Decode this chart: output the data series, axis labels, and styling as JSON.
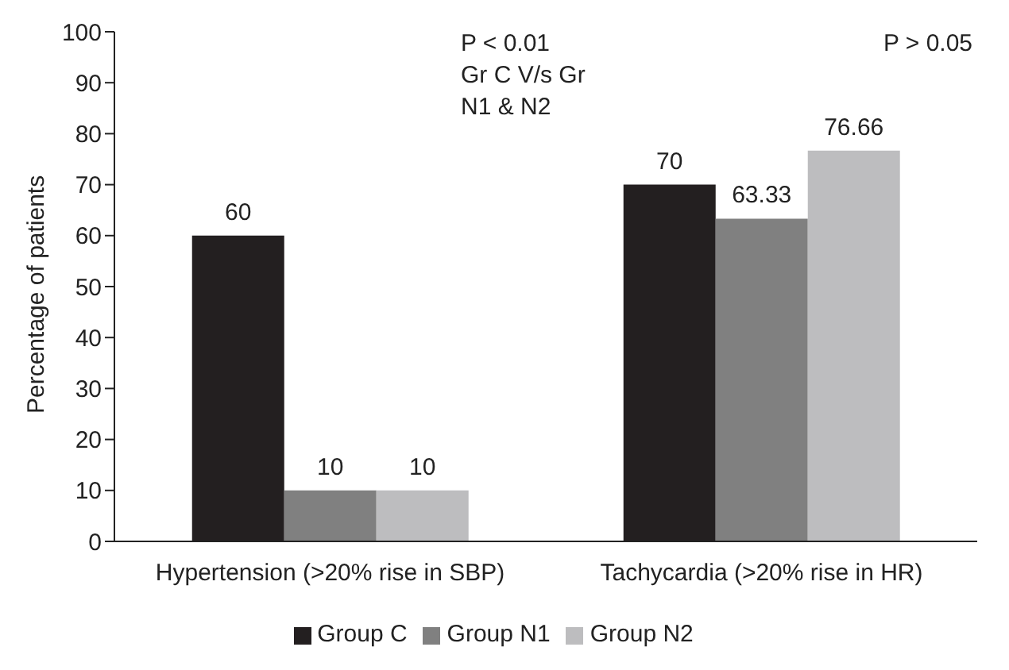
{
  "chart_data": {
    "type": "bar",
    "ylabel": "Percentage of patients",
    "categories": [
      "Hypertension (>20% rise in SBP)",
      "Tachycardia (>20% rise in HR)"
    ],
    "series": [
      {
        "name": "Group C",
        "color": "#231f20",
        "values": [
          60,
          70
        ]
      },
      {
        "name": "Group N1",
        "color": "#808080",
        "values": [
          10,
          63.33
        ]
      },
      {
        "name": "Group N2",
        "color": "#bdbdbf",
        "values": [
          10,
          76.66
        ]
      }
    ],
    "ylim": [
      0,
      100
    ],
    "yticks": [
      0,
      10,
      20,
      30,
      40,
      50,
      60,
      70,
      80,
      90,
      100
    ],
    "data_labels": true,
    "legend": "bottom",
    "annotations": [
      "P < 0.01\nGr C V/s Gr\nN1 & N2",
      "P > 0.05"
    ]
  }
}
